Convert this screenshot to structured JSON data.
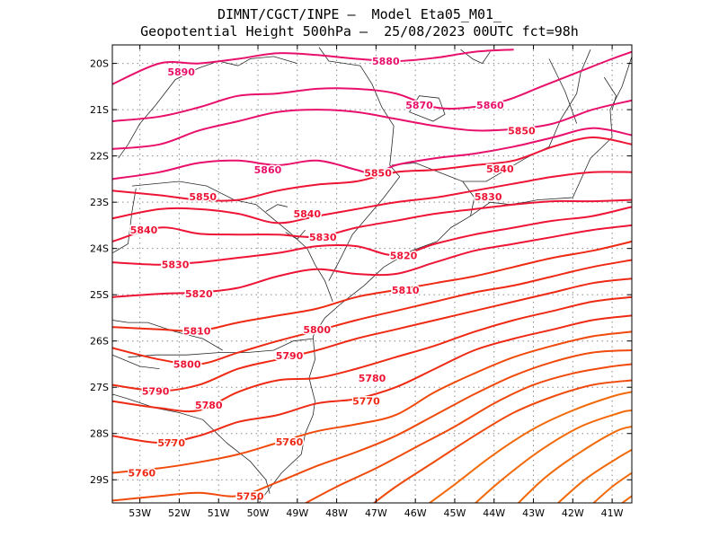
{
  "header": {
    "line1": "DIMNT/CGCT/INPE –  Model Eta05_M01_",
    "line2": "Geopotential Height 500hPa –  25/08/2023 00UTC fct=98h"
  },
  "map": {
    "lon_range": [
      -53.7,
      -40.5
    ],
    "lat_range": [
      -29.5,
      -19.6
    ],
    "lat_ticks": [
      {
        "v": -20,
        "label": "20S"
      },
      {
        "v": -21,
        "label": "21S"
      },
      {
        "v": -22,
        "label": "22S"
      },
      {
        "v": -23,
        "label": "23S"
      },
      {
        "v": -24,
        "label": "24S"
      },
      {
        "v": -25,
        "label": "25S"
      },
      {
        "v": -26,
        "label": "26S"
      },
      {
        "v": -27,
        "label": "27S"
      },
      {
        "v": -28,
        "label": "28S"
      },
      {
        "v": -29,
        "label": "29S"
      }
    ],
    "lon_ticks": [
      {
        "v": -53,
        "label": "53W"
      },
      {
        "v": -52,
        "label": "52W"
      },
      {
        "v": -51,
        "label": "51W"
      },
      {
        "v": -50,
        "label": "50W"
      },
      {
        "v": -49,
        "label": "49W"
      },
      {
        "v": -48,
        "label": "48W"
      },
      {
        "v": -47,
        "label": "47W"
      },
      {
        "v": -46,
        "label": "46W"
      },
      {
        "v": -45,
        "label": "45W"
      },
      {
        "v": -44,
        "label": "44W"
      },
      {
        "v": -43,
        "label": "43W"
      },
      {
        "v": -42,
        "label": "42W"
      },
      {
        "v": -41,
        "label": "41W"
      }
    ],
    "grid": "dotted",
    "contour_colors": [
      "#e8106a",
      "#ee1436",
      "#ee2a14",
      "#f04a0c",
      "#f26a0a"
    ],
    "contour_labels": [
      {
        "text": "5890",
        "lon": -51.95,
        "lat": -20.18
      },
      {
        "text": "5880",
        "lon": -46.75,
        "lat": -19.95
      },
      {
        "text": "5870",
        "lon": -45.9,
        "lat": -20.9
      },
      {
        "text": "5860",
        "lon": -44.1,
        "lat": -20.9
      },
      {
        "text": "5850",
        "lon": -43.3,
        "lat": -21.45
      },
      {
        "text": "5860",
        "lon": -49.75,
        "lat": -22.3
      },
      {
        "text": "5850",
        "lon": -46.95,
        "lat": -22.37
      },
      {
        "text": "5840",
        "lon": -43.85,
        "lat": -22.28
      },
      {
        "text": "5850",
        "lon": -51.4,
        "lat": -22.88
      },
      {
        "text": "5830",
        "lon": -44.15,
        "lat": -22.88
      },
      {
        "text": "5840",
        "lon": -48.75,
        "lat": -23.25
      },
      {
        "text": "5840",
        "lon": -52.9,
        "lat": -23.6
      },
      {
        "text": "5830",
        "lon": -48.35,
        "lat": -23.75
      },
      {
        "text": "5820",
        "lon": -46.3,
        "lat": -24.15
      },
      {
        "text": "5830",
        "lon": -52.1,
        "lat": -24.35
      },
      {
        "text": "5810",
        "lon": -46.25,
        "lat": -24.9
      },
      {
        "text": "5820",
        "lon": -51.5,
        "lat": -24.98
      },
      {
        "text": "5800",
        "lon": -48.5,
        "lat": -25.75
      },
      {
        "text": "5810",
        "lon": -51.55,
        "lat": -25.78
      },
      {
        "text": "5790",
        "lon": -49.2,
        "lat": -26.32
      },
      {
        "text": "5800",
        "lon": -51.8,
        "lat": -26.5
      },
      {
        "text": "5780",
        "lon": -47.1,
        "lat": -26.8
      },
      {
        "text": "5790",
        "lon": -52.6,
        "lat": -27.08
      },
      {
        "text": "5770",
        "lon": -47.25,
        "lat": -27.3
      },
      {
        "text": "5780",
        "lon": -51.25,
        "lat": -27.38
      },
      {
        "text": "5760",
        "lon": -49.2,
        "lat": -28.18
      },
      {
        "text": "5770",
        "lon": -52.2,
        "lat": -28.2
      },
      {
        "text": "5760",
        "lon": -52.95,
        "lat": -28.85
      },
      {
        "text": "5750",
        "lon": -50.2,
        "lat": -29.35
      }
    ]
  }
}
